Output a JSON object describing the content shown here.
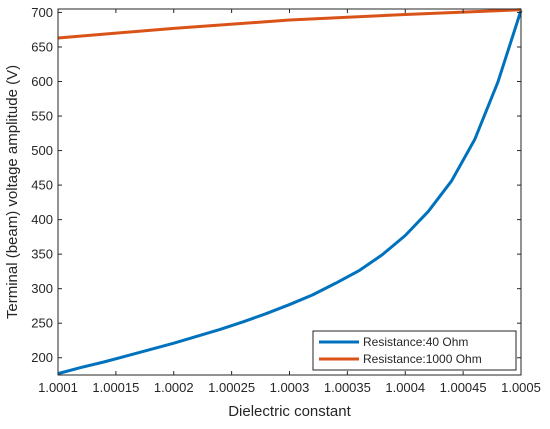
{
  "chart_data": {
    "type": "line",
    "title": "",
    "xlabel": "Dielectric constant",
    "ylabel": "Terminal (beam) voltage amplitude (V)",
    "xlim": [
      1.0001,
      1.0005
    ],
    "ylim": [
      175,
      705
    ],
    "xticks": [
      1.0001,
      1.00015,
      1.0002,
      1.00025,
      1.0003,
      1.00035,
      1.0004,
      1.00045,
      1.0005
    ],
    "xtick_labels": [
      "1.0001",
      "1.00015",
      "1.0002",
      "1.00025",
      "1.0003",
      "1.00035",
      "1.0004",
      "1.00045",
      "1.0005"
    ],
    "yticks": [
      200,
      250,
      300,
      350,
      400,
      450,
      500,
      550,
      600,
      650,
      700
    ],
    "ytick_labels": [
      "200",
      "250",
      "300",
      "350",
      "400",
      "450",
      "500",
      "550",
      "600",
      "650",
      "700"
    ],
    "grid": false,
    "legend_position": "bottom-right",
    "series": [
      {
        "name": "Resistance:40 Ohm",
        "color": "#0072BD",
        "x": [
          1.0001,
          1.00012,
          1.00014,
          1.00016,
          1.00018,
          1.0002,
          1.00022,
          1.00024,
          1.00026,
          1.00028,
          1.0003,
          1.00032,
          1.00034,
          1.00036,
          1.00038,
          1.0004,
          1.00042,
          1.00044,
          1.00046,
          1.00048,
          1.0005
        ],
        "values": [
          177,
          186,
          194,
          203,
          212,
          221,
          231,
          241,
          252,
          264,
          277,
          291,
          308,
          326,
          349,
          377,
          412,
          456,
          516,
          599,
          703
        ]
      },
      {
        "name": "Resistance:1000 Ohm",
        "color": "#D95319",
        "x": [
          1.0001,
          1.0002,
          1.0003,
          1.0004,
          1.0005
        ],
        "values": [
          663,
          677,
          689,
          697,
          704
        ]
      }
    ]
  }
}
